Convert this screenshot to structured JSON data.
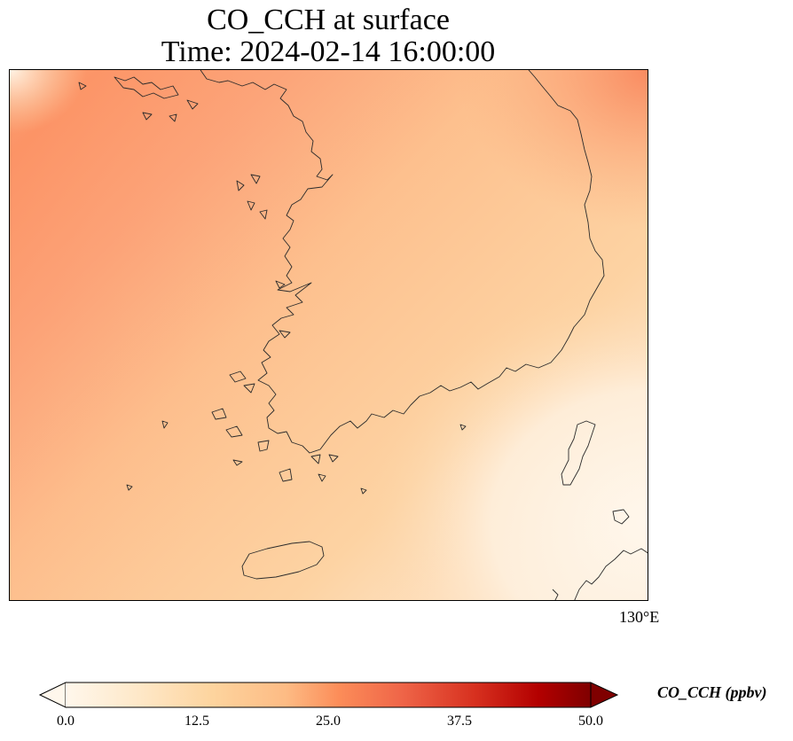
{
  "title": {
    "line1": "CO_CCH at surface",
    "line2": "Time: 2024-02-14 16:00:00"
  },
  "map": {
    "longitude_label": "130°E",
    "features": [
      "korean-peninsula-coastline",
      "jeju-island",
      "tsushima-island",
      "kyushu-coast"
    ],
    "colormap": "OrRd",
    "field_levels": {
      "northwest_band": 24,
      "central_land": 17,
      "southeast_corner": 3,
      "northeast_corner": 26
    }
  },
  "colorbar": {
    "label": "CO_CCH (ppbv)",
    "range": [
      0.0,
      50.0
    ],
    "ticks": [
      "0.0",
      "12.5",
      "25.0",
      "37.5",
      "50.0"
    ],
    "extend": "both",
    "colors": [
      "#fff7ec",
      "#fdd49e",
      "#fdbb84",
      "#fc8d59",
      "#ef6548",
      "#d7301f",
      "#b30000",
      "#7f0000"
    ]
  }
}
